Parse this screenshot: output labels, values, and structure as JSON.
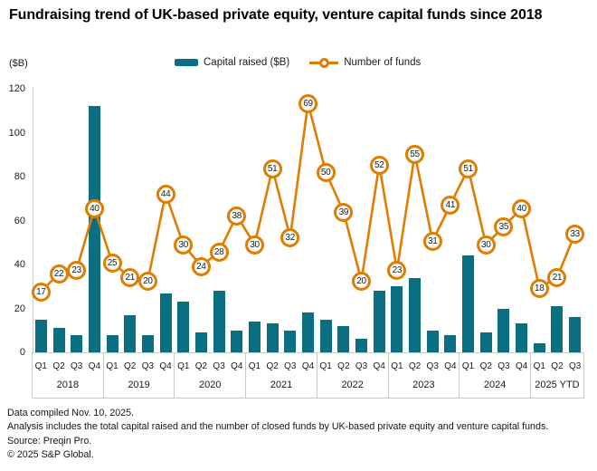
{
  "title": "Fundraising trend of UK-based private equity, venture capital funds since 2018",
  "y_axis_unit_label": "($B)",
  "legend": {
    "bar_label": "Capital raised ($B)",
    "line_label": "Number of funds"
  },
  "colors": {
    "bar": "#0A7081",
    "line": "#E07C00",
    "axis": "#C9C9C9",
    "text": "#1A1A1A"
  },
  "footer": {
    "lines": [
      "Data compiled Nov. 10, 2025.",
      "Analysis includes the total capital raised and the number of closed funds by UK-based private equity and venture capital funds.",
      "Source: Preqin Pro.",
      "© 2025 S&P Global."
    ]
  },
  "chart_data": {
    "type": "bar",
    "title": "Fundraising trend of UK-based private equity, venture capital funds since 2018",
    "ylabel": "($B)",
    "ylim": [
      0,
      120
    ],
    "yticks": [
      0,
      20,
      40,
      60,
      80,
      100,
      120
    ],
    "grid": false,
    "legend_position": "top",
    "categories": [
      "2018 Q1",
      "2018 Q2",
      "2018 Q3",
      "2018 Q4",
      "2019 Q1",
      "2019 Q2",
      "2019 Q3",
      "2019 Q4",
      "2020 Q1",
      "2020 Q2",
      "2020 Q3",
      "2020 Q4",
      "2021 Q1",
      "2021 Q2",
      "2021 Q3",
      "2021 Q4",
      "2022 Q1",
      "2022 Q2",
      "2022 Q3",
      "2022 Q4",
      "2023 Q1",
      "2023 Q2",
      "2023 Q3",
      "2023 Q4",
      "2024 Q1",
      "2024 Q2",
      "2024 Q3",
      "2024 Q4",
      "2025 Q1",
      "2025 Q2",
      "2025 Q3"
    ],
    "x_groups": [
      {
        "label": "2018",
        "quarters": [
          "Q1",
          "Q2",
          "Q3",
          "Q4"
        ]
      },
      {
        "label": "2019",
        "quarters": [
          "Q1",
          "Q2",
          "Q3",
          "Q4"
        ]
      },
      {
        "label": "2020",
        "quarters": [
          "Q1",
          "Q2",
          "Q3",
          "Q4"
        ]
      },
      {
        "label": "2021",
        "quarters": [
          "Q1",
          "Q2",
          "Q3",
          "Q4"
        ]
      },
      {
        "label": "2022",
        "quarters": [
          "Q1",
          "Q2",
          "Q3",
          "Q4"
        ]
      },
      {
        "label": "2023",
        "quarters": [
          "Q1",
          "Q2",
          "Q3",
          "Q4"
        ]
      },
      {
        "label": "2024",
        "quarters": [
          "Q1",
          "Q2",
          "Q3",
          "Q4"
        ]
      },
      {
        "label": "2025 YTD",
        "quarters": [
          "Q1",
          "Q2",
          "Q3"
        ]
      }
    ],
    "series": [
      {
        "name": "Capital raised ($B)",
        "type": "bar",
        "color": "#0A7081",
        "values": [
          15,
          11,
          8,
          112,
          8,
          17,
          8,
          27,
          23,
          9,
          28,
          10,
          14,
          13,
          10,
          18,
          15,
          12,
          6,
          28,
          30,
          34,
          10,
          8,
          44,
          9,
          20,
          13,
          4,
          21,
          16
        ]
      },
      {
        "name": "Number of funds",
        "type": "line",
        "color": "#E07C00",
        "values": [
          17,
          22,
          23,
          40,
          25,
          21,
          20,
          44,
          30,
          24,
          28,
          38,
          30,
          51,
          32,
          69,
          50,
          39,
          20,
          52,
          23,
          55,
          31,
          41,
          51,
          30,
          35,
          40,
          18,
          21,
          33
        ]
      }
    ]
  }
}
